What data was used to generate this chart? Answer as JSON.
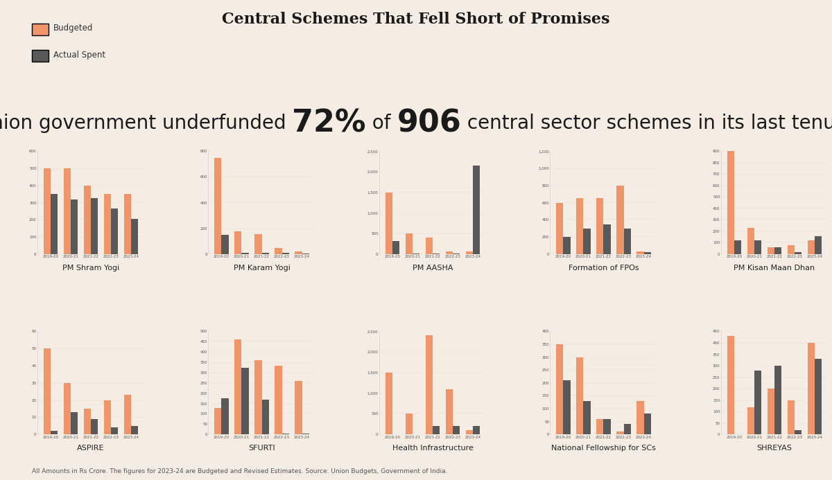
{
  "background_color": "#f5ede3",
  "title": "Central Schemes That Fell Short of Promises",
  "legend_budgeted_color": "#f0956a",
  "legend_actual_color": "#595959",
  "footnote": "All Amounts in Rs Crore. The figures for 2023-24 are Budgeted and Revised Estimates. Source: Union Budgets, Government of India.",
  "years": [
    "2019-20",
    "2020-21",
    "2021-22",
    "2022-23",
    "2023-24"
  ],
  "schemes": [
    {
      "name": "PM Shram Yogi",
      "budgeted": [
        500,
        500,
        400,
        350,
        350
      ],
      "actual": [
        350,
        320,
        325,
        265,
        205
      ],
      "ylim": [
        0,
        600
      ],
      "yticks": [
        0,
        100,
        200,
        300,
        400,
        500,
        600
      ]
    },
    {
      "name": "PM Karam Yogi",
      "budgeted": [
        750,
        180,
        155,
        50,
        20
      ],
      "actual": [
        150,
        10,
        10,
        8,
        5
      ],
      "ylim": [
        0,
        800
      ],
      "yticks": [
        0,
        200,
        400,
        600,
        800
      ]
    },
    {
      "name": "PM AASHA",
      "budgeted": [
        1500,
        500,
        400,
        60,
        60
      ],
      "actual": [
        325,
        10,
        10,
        10,
        2150
      ],
      "ylim": [
        0,
        2500
      ],
      "yticks": [
        0,
        500,
        1000,
        1500,
        2000,
        2500
      ]
    },
    {
      "name": "Formation of FPOs",
      "budgeted": [
        600,
        650,
        650,
        800,
        30
      ],
      "actual": [
        200,
        300,
        350,
        300,
        20
      ],
      "ylim": [
        0,
        1200
      ],
      "yticks": [
        0,
        200,
        400,
        600,
        800,
        1000,
        1200
      ]
    },
    {
      "name": "PM Kisan Maan Dhan",
      "budgeted": [
        900,
        230,
        60,
        80,
        120
      ],
      "actual": [
        120,
        120,
        60,
        20,
        160
      ],
      "ylim": [
        0,
        900
      ],
      "yticks": [
        0,
        100,
        200,
        300,
        400,
        500,
        600,
        700,
        800,
        900
      ]
    },
    {
      "name": "ASPIRE",
      "budgeted": [
        50,
        30,
        15,
        20,
        23
      ],
      "actual": [
        2,
        13,
        9,
        4,
        5
      ],
      "ylim": [
        0,
        60
      ],
      "yticks": [
        0,
        10,
        20,
        30,
        40,
        50,
        60
      ]
    },
    {
      "name": "SFURTI",
      "budgeted": [
        130,
        460,
        360,
        335,
        260
      ],
      "actual": [
        175,
        325,
        170,
        5,
        5
      ],
      "ylim": [
        0,
        500
      ],
      "yticks": [
        0,
        50,
        100,
        150,
        200,
        250,
        300,
        350,
        400,
        450,
        500
      ]
    },
    {
      "name": "Health Infrastructure",
      "budgeted": [
        1500,
        500,
        2400,
        1100,
        100
      ],
      "actual": [
        0,
        0,
        200,
        200,
        200
      ],
      "ylim": [
        0,
        2500
      ],
      "yticks": [
        0,
        500,
        1000,
        1500,
        2000,
        2500
      ]
    },
    {
      "name": "National Fellowship for SCs",
      "budgeted": [
        350,
        300,
        60,
        10,
        130
      ],
      "actual": [
        210,
        130,
        60,
        40,
        80
      ],
      "ylim": [
        0,
        400
      ],
      "yticks": [
        0,
        50,
        100,
        150,
        200,
        250,
        300,
        350,
        400
      ]
    },
    {
      "name": "SHREYAS",
      "budgeted": [
        430,
        120,
        200,
        150,
        400
      ],
      "actual": [
        0,
        280,
        300,
        20,
        330
      ],
      "ylim": [
        0,
        450
      ],
      "yticks": [
        0,
        50,
        100,
        150,
        200,
        250,
        300,
        350,
        400,
        450
      ]
    }
  ]
}
